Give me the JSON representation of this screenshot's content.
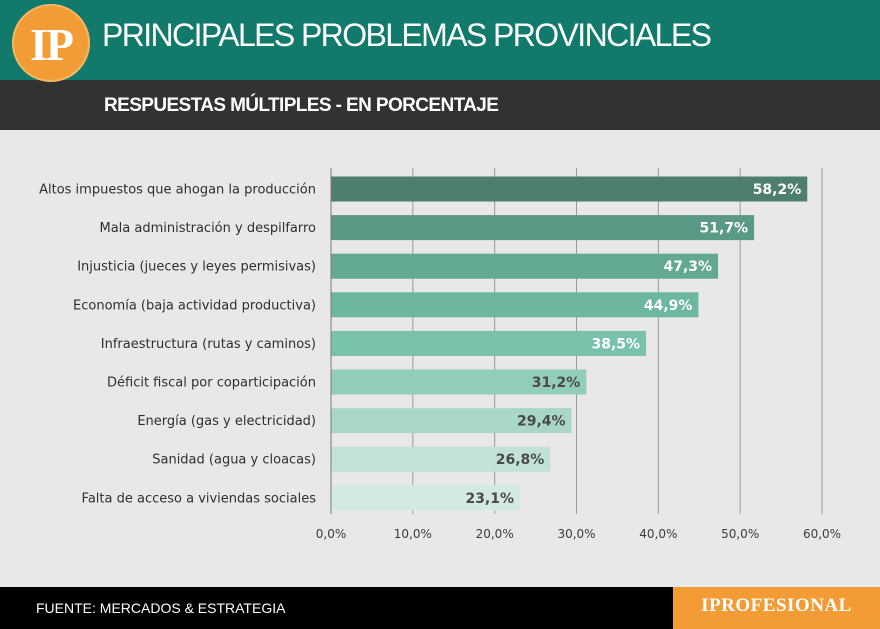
{
  "header": {
    "logo_text": "IP",
    "title": "PRINCIPALES PROBLEMAS PROVINCIALES",
    "subtitle": "RESPUESTAS MÚLTIPLES - EN PORCENTAJE"
  },
  "footer": {
    "source": "FUENTE: MERCADOS & ESTRATEGIA",
    "brand": "IPROFESIONAL"
  },
  "colors": {
    "header": "#127a6a",
    "subheader": "#323232",
    "logo": "#f39c35",
    "footer": "#000000",
    "bars": [
      "#4e7f6e",
      "#5a9985",
      "#63a991",
      "#6db69f",
      "#78c1aa",
      "#92cdb7",
      "#a9d7c6",
      "#c1e2d5",
      "#d3eae1"
    ]
  },
  "chart_data": {
    "type": "bar",
    "orientation": "horizontal",
    "categories": [
      "Altos impuestos que ahogan la producción",
      "Mala administración y despilfarro",
      "Injusticia (jueces y leyes permisivas)",
      "Economía (baja actividad productiva)",
      "Infraestructura (rutas y caminos)",
      "Déficit fiscal por coparticipación",
      "Energía (gas y electricidad)",
      "Sanidad (agua y cloacas)",
      "Falta de acceso a viviendas sociales"
    ],
    "values": [
      58.2,
      51.7,
      47.3,
      44.9,
      38.5,
      31.2,
      29.4,
      26.8,
      23.1
    ],
    "value_labels": [
      "58,2%",
      "51,7%",
      "47,3%",
      "44,9%",
      "38,5%",
      "31,2%",
      "29,4%",
      "26,8%",
      "23,1%"
    ],
    "xlim": [
      0,
      60
    ],
    "x_ticks": [
      "0,0%",
      "10,0%",
      "20,0%",
      "30,0%",
      "40,0%",
      "50,0%",
      "60,0%"
    ],
    "grid": true,
    "legend": "none"
  }
}
